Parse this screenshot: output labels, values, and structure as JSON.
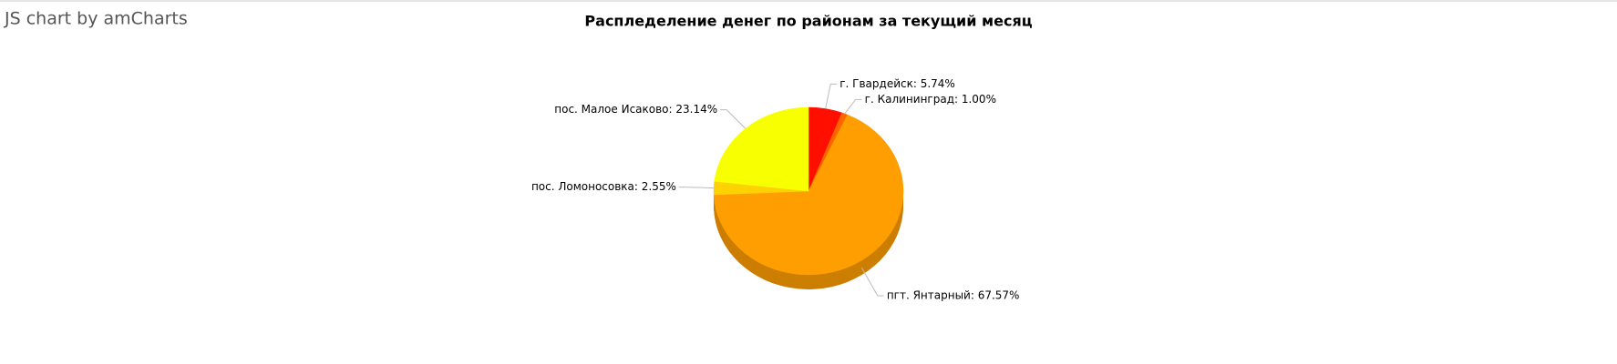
{
  "credit": "JS chart by amCharts",
  "chart_data": {
    "type": "pie3d",
    "title": "Распледеление денег по районам за текущий месяц",
    "values": [
      5.74,
      1.0,
      67.57,
      2.55,
      23.14
    ],
    "value_labels": [
      "г. Гвардейск: 5.74%",
      "г. Калининград: 1.00%",
      "пгт. Янтарный: 67.57%",
      "пос. Ломоносовка: 2.55%",
      "пос. Малое Исаково: 23.14%"
    ],
    "colors": [
      "#ff0f00",
      "#ff6600",
      "#ff9e01",
      "#fcd202",
      "#f8ff01"
    ]
  }
}
